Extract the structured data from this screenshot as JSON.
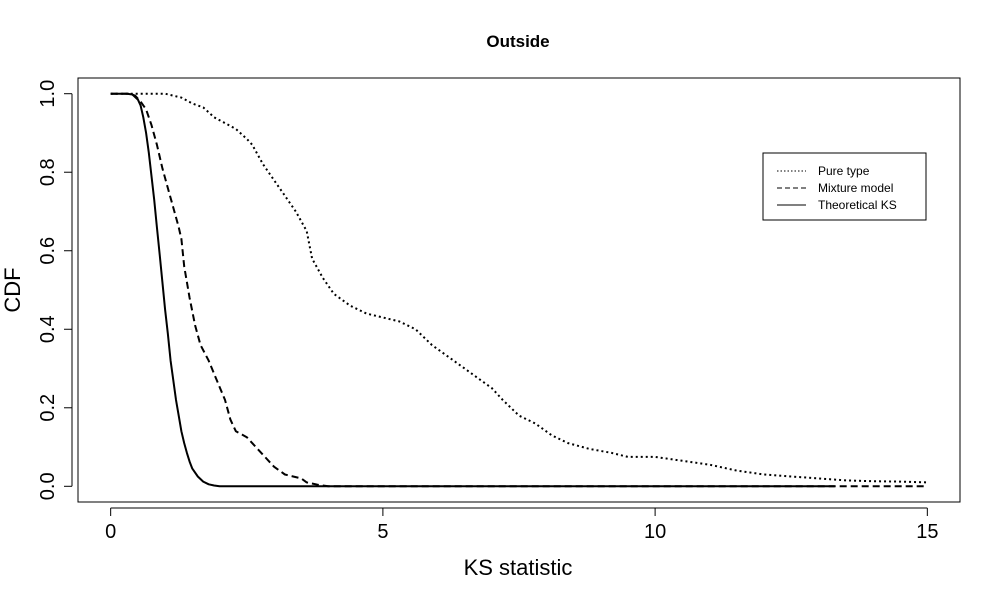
{
  "chart_data": {
    "type": "line",
    "title": "Outside",
    "xlabel": "KS statistic",
    "ylabel": "CDF",
    "xlim": [
      -0.6,
      15.6
    ],
    "ylim": [
      -0.04,
      1.04
    ],
    "x_ticks": [
      0,
      5,
      10,
      15
    ],
    "x_tick_labels": [
      "0",
      "5",
      "10",
      "15"
    ],
    "y_ticks": [
      0.0,
      0.2,
      0.4,
      0.6,
      0.8,
      1.0
    ],
    "y_tick_labels": [
      "0.0",
      "0.2",
      "0.4",
      "0.6",
      "0.8",
      "1.0"
    ],
    "grid": false,
    "legend_position": "top-right",
    "series": [
      {
        "name": "Pure type",
        "dash": "dotted",
        "points": [
          [
            0,
            1.0
          ],
          [
            0.5,
            1.0
          ],
          [
            1.0,
            1.0
          ],
          [
            1.3,
            0.99
          ],
          [
            1.5,
            0.975
          ],
          [
            1.7,
            0.965
          ],
          [
            1.9,
            0.94
          ],
          [
            2.1,
            0.925
          ],
          [
            2.3,
            0.91
          ],
          [
            2.5,
            0.885
          ],
          [
            2.6,
            0.87
          ],
          [
            2.8,
            0.82
          ],
          [
            3.0,
            0.78
          ],
          [
            3.2,
            0.74
          ],
          [
            3.4,
            0.7
          ],
          [
            3.6,
            0.65
          ],
          [
            3.7,
            0.58
          ],
          [
            3.9,
            0.53
          ],
          [
            4.1,
            0.49
          ],
          [
            4.4,
            0.46
          ],
          [
            4.7,
            0.44
          ],
          [
            5.0,
            0.43
          ],
          [
            5.3,
            0.42
          ],
          [
            5.6,
            0.4
          ],
          [
            5.9,
            0.36
          ],
          [
            6.2,
            0.33
          ],
          [
            6.5,
            0.3
          ],
          [
            6.8,
            0.27
          ],
          [
            7.0,
            0.25
          ],
          [
            7.2,
            0.22
          ],
          [
            7.5,
            0.18
          ],
          [
            7.8,
            0.16
          ],
          [
            8.1,
            0.13
          ],
          [
            8.4,
            0.11
          ],
          [
            8.8,
            0.095
          ],
          [
            9.2,
            0.085
          ],
          [
            9.5,
            0.075
          ],
          [
            10.0,
            0.075
          ],
          [
            10.5,
            0.065
          ],
          [
            11.0,
            0.055
          ],
          [
            11.5,
            0.04
          ],
          [
            12.0,
            0.03
          ],
          [
            12.5,
            0.025
          ],
          [
            13.0,
            0.02
          ],
          [
            13.5,
            0.015
          ],
          [
            14.0,
            0.013
          ],
          [
            14.5,
            0.012
          ],
          [
            15.0,
            0.01
          ]
        ]
      },
      {
        "name": "Mixture model",
        "dash": "dashed",
        "points": [
          [
            0,
            1.0
          ],
          [
            0.35,
            1.0
          ],
          [
            0.45,
            0.995
          ],
          [
            0.55,
            0.98
          ],
          [
            0.65,
            0.96
          ],
          [
            0.75,
            0.92
          ],
          [
            0.85,
            0.87
          ],
          [
            0.95,
            0.81
          ],
          [
            1.05,
            0.76
          ],
          [
            1.15,
            0.71
          ],
          [
            1.25,
            0.66
          ],
          [
            1.3,
            0.63
          ],
          [
            1.35,
            0.56
          ],
          [
            1.45,
            0.48
          ],
          [
            1.55,
            0.41
          ],
          [
            1.65,
            0.36
          ],
          [
            1.8,
            0.32
          ],
          [
            1.95,
            0.27
          ],
          [
            2.1,
            0.22
          ],
          [
            2.2,
            0.17
          ],
          [
            2.3,
            0.14
          ],
          [
            2.5,
            0.125
          ],
          [
            2.6,
            0.11
          ],
          [
            2.8,
            0.08
          ],
          [
            3.0,
            0.05
          ],
          [
            3.2,
            0.03
          ],
          [
            3.5,
            0.02
          ],
          [
            3.6,
            0.01
          ],
          [
            3.8,
            0.004
          ],
          [
            4.0,
            0.0
          ],
          [
            13.3,
            0.0
          ],
          [
            15.0,
            0.0
          ]
        ]
      },
      {
        "name": "Theoretical KS",
        "dash": "solid",
        "points": [
          [
            0,
            1.0
          ],
          [
            0.3,
            1.0
          ],
          [
            0.4,
            0.998
          ],
          [
            0.5,
            0.985
          ],
          [
            0.55,
            0.97
          ],
          [
            0.6,
            0.94
          ],
          [
            0.65,
            0.9
          ],
          [
            0.7,
            0.85
          ],
          [
            0.75,
            0.79
          ],
          [
            0.8,
            0.73
          ],
          [
            0.85,
            0.66
          ],
          [
            0.9,
            0.59
          ],
          [
            0.95,
            0.52
          ],
          [
            1.0,
            0.45
          ],
          [
            1.05,
            0.39
          ],
          [
            1.1,
            0.32
          ],
          [
            1.15,
            0.27
          ],
          [
            1.2,
            0.22
          ],
          [
            1.25,
            0.18
          ],
          [
            1.3,
            0.14
          ],
          [
            1.35,
            0.11
          ],
          [
            1.4,
            0.085
          ],
          [
            1.45,
            0.063
          ],
          [
            1.5,
            0.045
          ],
          [
            1.6,
            0.025
          ],
          [
            1.7,
            0.012
          ],
          [
            1.8,
            0.005
          ],
          [
            1.9,
            0.002
          ],
          [
            2.0,
            0.0
          ],
          [
            13.3,
            0.0
          ]
        ]
      }
    ]
  }
}
